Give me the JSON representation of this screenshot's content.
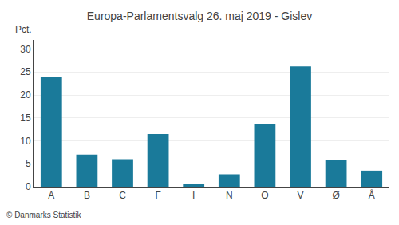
{
  "chart_data": {
    "type": "bar",
    "title": "Europa-Parlamentsvalg 26. maj 2019 - Gislev",
    "categories": [
      "A",
      "B",
      "C",
      "F",
      "I",
      "N",
      "O",
      "V",
      "Ø",
      "Å"
    ],
    "values": [
      24.0,
      7.0,
      6.0,
      11.5,
      0.7,
      2.7,
      13.7,
      26.2,
      5.8,
      3.5
    ],
    "color": "#1a7a9a",
    "ylim": [
      0,
      32
    ],
    "yticks": [
      0,
      5,
      10,
      15,
      20,
      25,
      30
    ],
    "grid": true,
    "ylabel": "Pct.",
    "footer": "© Danmarks Statistik"
  }
}
